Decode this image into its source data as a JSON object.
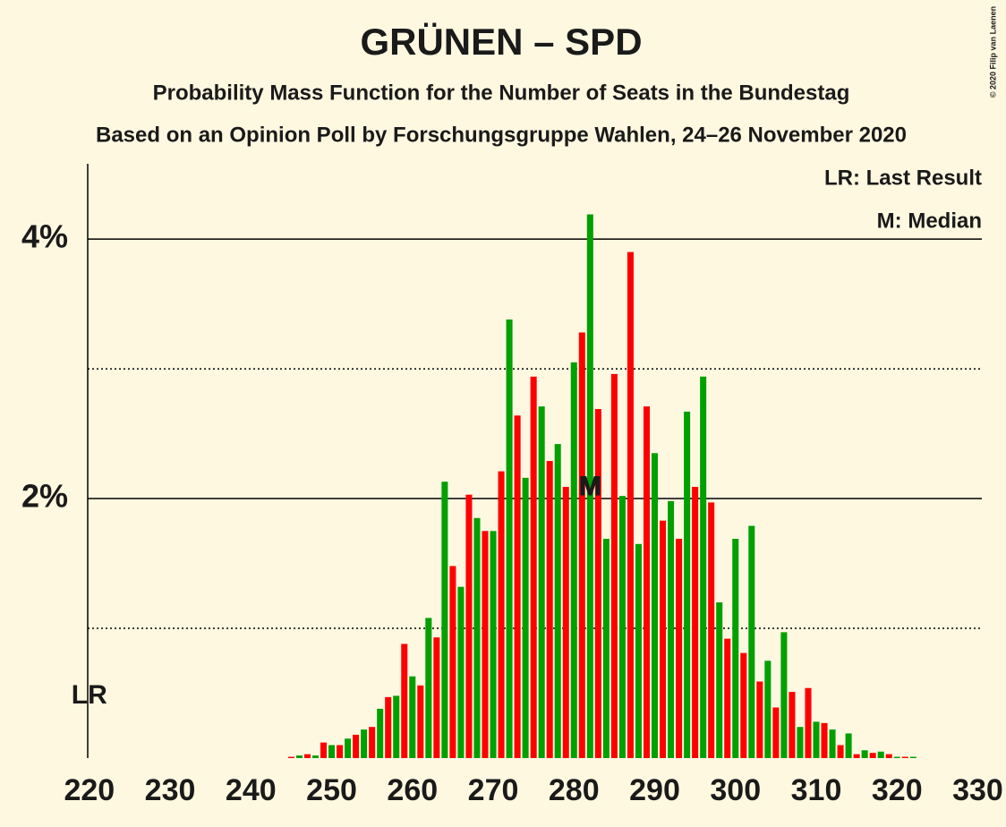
{
  "chart_data": {
    "type": "bar",
    "title": "GRÜNEN – SPD",
    "subtitle": "Probability Mass Function for the Number of Seats in the Bundestag",
    "subtitle2": "Based on an Opinion Poll by Forschungsgruppe Wahlen, 24–26 November 2020",
    "copyright": "© 2020 Filip van Laenen",
    "legend": [
      "LR: Last Result",
      "M: Median"
    ],
    "last_result_label": "LR",
    "last_result": 220,
    "median_label": "M",
    "median": 282,
    "colors": [
      "#00a000",
      "#ff0000"
    ],
    "x": [
      220,
      221,
      222,
      223,
      224,
      225,
      226,
      227,
      228,
      229,
      230,
      231,
      232,
      233,
      234,
      235,
      236,
      237,
      238,
      239,
      240,
      241,
      242,
      243,
      244,
      245,
      246,
      247,
      248,
      249,
      250,
      251,
      252,
      253,
      254,
      255,
      256,
      257,
      258,
      259,
      260,
      261,
      262,
      263,
      264,
      265,
      266,
      267,
      268,
      269,
      270,
      271,
      272,
      273,
      274,
      275,
      276,
      277,
      278,
      279,
      280,
      281,
      282,
      283,
      284,
      285,
      286,
      287,
      288,
      289,
      290,
      291,
      292,
      293,
      294,
      295,
      296,
      297,
      298,
      299,
      300,
      301,
      302,
      303,
      304,
      305,
      306,
      307,
      308,
      309,
      310,
      311,
      312,
      313,
      314,
      315,
      316,
      317,
      318,
      319,
      320,
      321,
      322,
      323,
      324,
      325,
      326,
      327,
      328,
      329,
      330
    ],
    "values": [
      0,
      0,
      0,
      0,
      0,
      0,
      0,
      0,
      0,
      0,
      0,
      0,
      0,
      0,
      0,
      0,
      0,
      0,
      0,
      0,
      0,
      0,
      0,
      0,
      0,
      0.01,
      0.02,
      0.03,
      0.02,
      0.12,
      0.1,
      0.1,
      0.15,
      0.18,
      0.22,
      0.24,
      0.38,
      0.47,
      0.48,
      0.88,
      0.63,
      0.56,
      1.08,
      0.93,
      2.13,
      1.48,
      1.32,
      2.03,
      1.85,
      1.75,
      1.75,
      2.21,
      3.38,
      2.64,
      2.16,
      2.94,
      2.71,
      2.29,
      2.42,
      2.09,
      3.05,
      3.28,
      4.19,
      2.69,
      1.69,
      2.96,
      2.02,
      3.9,
      1.65,
      2.71,
      2.35,
      1.83,
      1.98,
      1.69,
      2.67,
      2.09,
      2.94,
      1.97,
      1.2,
      0.92,
      1.69,
      0.81,
      1.79,
      0.59,
      0.75,
      0.39,
      0.97,
      0.51,
      0.24,
      0.54,
      0.28,
      0.27,
      0.22,
      0.1,
      0.19,
      0.03,
      0.06,
      0.04,
      0.05,
      0.03,
      0.01,
      0.01,
      0.01,
      0,
      0,
      0,
      0,
      0,
      0,
      0,
      0
    ],
    "xlim": [
      219.8,
      330.5
    ],
    "xticks": [
      220,
      230,
      240,
      250,
      260,
      270,
      280,
      290,
      300,
      310,
      320,
      330
    ],
    "ylim": [
      0,
      4.58
    ],
    "yticks": [
      {
        "value": 2,
        "label": "2%"
      },
      {
        "value": 4,
        "label": "4%"
      }
    ],
    "minor_yticks": [
      1,
      3
    ]
  }
}
